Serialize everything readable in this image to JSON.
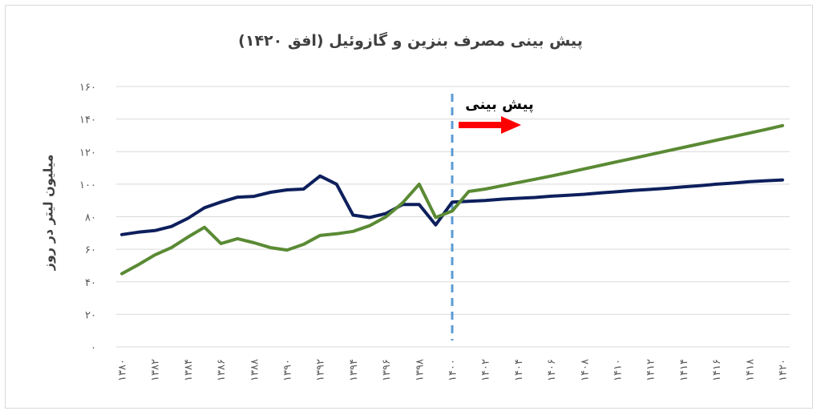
{
  "chart_data": {
    "type": "line",
    "title": "پیش بینی مصرف بنزین و گازوئیل (افق ۱۴۲۰)",
    "ylabel": "میلیون لیتر در روز",
    "ylim": [
      0,
      160
    ],
    "yticks": [
      0,
      20,
      40,
      60,
      80,
      100,
      120,
      140,
      160
    ],
    "ytick_labels": [
      "۰",
      "۲۰",
      "۴۰",
      "۶۰",
      "۸۰",
      "۱۰۰",
      "۱۲۰",
      "۱۴۰",
      "۱۶۰"
    ],
    "x": [
      1380,
      1381,
      1382,
      1383,
      1384,
      1385,
      1386,
      1387,
      1388,
      1389,
      1390,
      1391,
      1392,
      1393,
      1394,
      1395,
      1396,
      1397,
      1398,
      1399,
      1400,
      1401,
      1402,
      1403,
      1404,
      1405,
      1406,
      1407,
      1408,
      1409,
      1410,
      1411,
      1412,
      1413,
      1414,
      1415,
      1416,
      1417,
      1418,
      1419,
      1420
    ],
    "xtick_values": [
      1380,
      1382,
      1384,
      1386,
      1388,
      1390,
      1392,
      1394,
      1396,
      1398,
      1400,
      1402,
      1404,
      1406,
      1408,
      1410,
      1412,
      1414,
      1416,
      1418,
      1420
    ],
    "xtick_labels": [
      "۱۳۸۰",
      "۱۳۸۲",
      "۱۳۸۴",
      "۱۳۸۶",
      "۱۳۸۸",
      "۱۳۹۰",
      "۱۳۹۲",
      "۱۳۹۴",
      "۱۳۹۶",
      "۱۳۹۸",
      "۱۴۰۰",
      "۱۴۰۲",
      "۱۴۰۴",
      "۱۴۰۶",
      "۱۴۰۸",
      "۱۴۱۰",
      "۱۴۱۲",
      "۱۴۱۴",
      "۱۴۱۶",
      "۱۴۱۸",
      "۱۴۲۰"
    ],
    "grid": true,
    "series": [
      {
        "color": "#0d1f5c",
        "values": [
          69,
          70.5,
          71.5,
          74,
          79,
          85.5,
          89,
          92,
          92.5,
          95,
          96.5,
          97,
          105,
          100,
          81,
          79.5,
          82,
          87.5,
          87.5,
          75,
          89,
          89.5,
          90,
          90.8,
          91.3,
          91.8,
          92.6,
          93.2,
          93.8,
          94.6,
          95.4,
          96.2,
          96.8,
          97.5,
          98.3,
          99.1,
          100,
          100.7,
          101.5,
          102.1,
          102.6
        ]
      },
      {
        "color": "#5a8a34",
        "values": [
          45,
          50.5,
          56.5,
          61,
          67.5,
          73.5,
          63.5,
          66.5,
          64,
          61,
          59.5,
          63,
          68.5,
          69.5,
          71,
          74.5,
          80,
          88.5,
          100,
          79.5,
          83.5,
          95.5,
          97,
          99,
          101,
          103,
          105,
          107.2,
          109.4,
          111.6,
          113.8,
          116,
          118.2,
          120.4,
          122.6,
          124.8,
          127,
          129.2,
          131.4,
          133.6,
          136
        ]
      }
    ],
    "annotation": {
      "text": "پیش بینی",
      "forecast_start_x": 1400,
      "divider_color": "#5b9bd5",
      "arrow_color": "#ff0000"
    }
  }
}
